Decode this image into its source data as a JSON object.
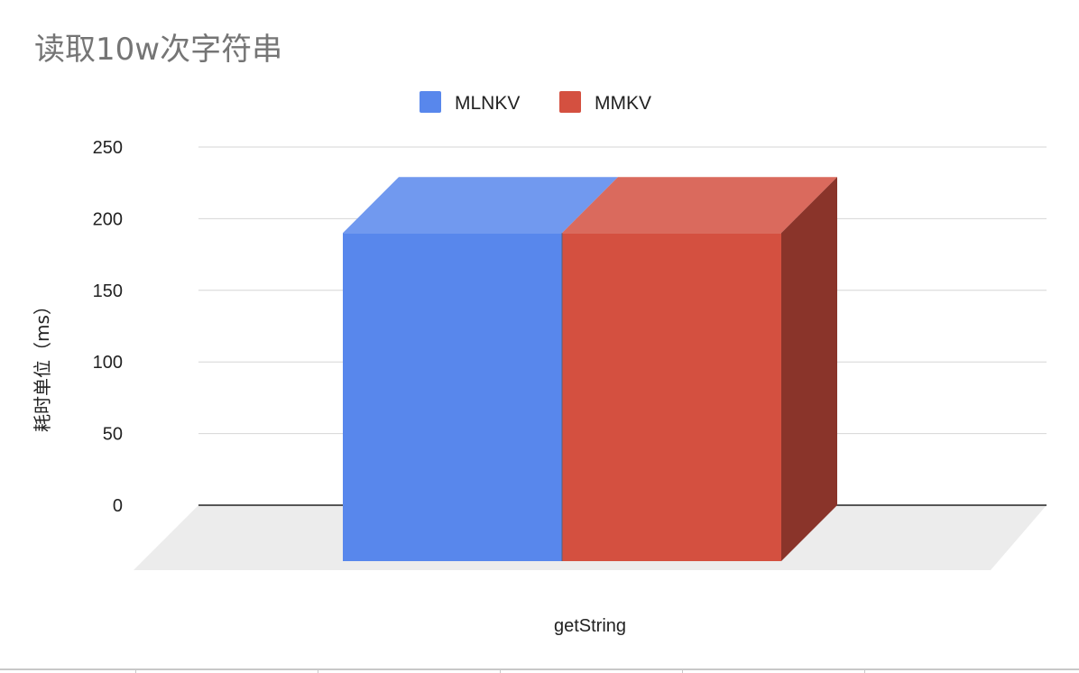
{
  "chart_data": {
    "type": "bar",
    "style": "3d",
    "title": "读取10w次字符串",
    "xlabel": "",
    "ylabel": "耗时单位（ms）",
    "categories": [
      "getString"
    ],
    "series": [
      {
        "name": "MLNKV",
        "values": [
          190
        ],
        "color": "#5887ec"
      },
      {
        "name": "MMKV",
        "values": [
          190
        ],
        "color": "#d45040"
      }
    ],
    "ylim": [
      0,
      250
    ],
    "yticks": [
      "250",
      "200",
      "150",
      "100",
      "50",
      "0"
    ],
    "grid": true,
    "legend_position": "top-center"
  },
  "colors": {
    "grid": "#d6d6d6",
    "floor": "#ececec",
    "baseline": "#222222",
    "title": "#757575"
  }
}
